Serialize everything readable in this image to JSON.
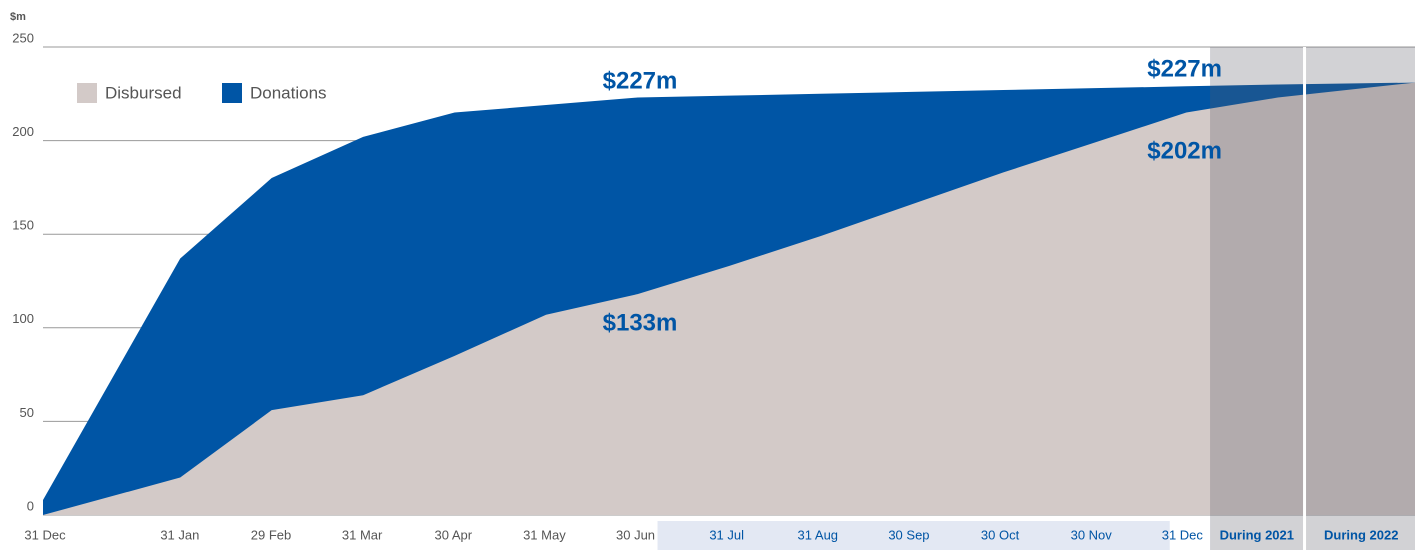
{
  "chart_data": {
    "type": "area",
    "y_label": "$m",
    "categories": [
      "31 Dec",
      "31 Jan",
      "29 Feb",
      "31 Mar",
      "30 Apr",
      "31 May",
      "30 Jun",
      "31 Jul",
      "31 Aug",
      "30 Sep",
      "30 Oct",
      "30 Nov",
      "31 Dec",
      "During 2021",
      "During 2022"
    ],
    "series": [
      {
        "name": "Donations",
        "color": "#0055a5",
        "values": [
          8,
          137,
          180,
          202,
          215,
          219,
          223,
          224,
          225,
          226,
          227,
          228,
          229,
          230,
          231
        ]
      },
      {
        "name": "Disbursed",
        "color": "#d3cac8",
        "values": [
          0,
          20,
          56,
          64,
          85,
          107,
          118,
          133,
          149,
          166,
          183,
          199,
          215,
          223,
          231
        ]
      }
    ],
    "annotations": [
      "$227m",
      "$133m",
      "$227m",
      "$202m"
    ],
    "ylim": [
      0,
      250
    ],
    "yticks": [
      0,
      50,
      100,
      150,
      200,
      250
    ],
    "grid": true
  }
}
